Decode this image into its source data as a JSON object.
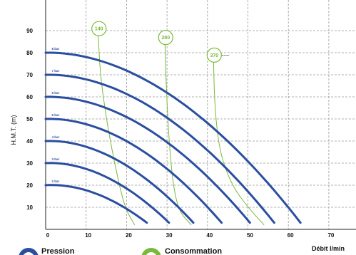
{
  "chart_data": {
    "type": "line",
    "xlabel": "Débit l/min",
    "ylabel": "H.M.T. (m)",
    "xlim": [
      0,
      80
    ],
    "ylim": [
      0,
      100
    ],
    "x_ticks": [
      "0",
      "10",
      "20",
      "30",
      "40",
      "50",
      "60",
      "70"
    ],
    "y_ticks": [
      "10",
      "20",
      "30",
      "40",
      "50",
      "60",
      "70",
      "80",
      "90"
    ],
    "grid": true,
    "pressure_series": [
      {
        "name": "2 bar",
        "h0": 20,
        "qmax": 25.0
      },
      {
        "name": "3 bar",
        "h0": 30,
        "qmax": 30.5
      },
      {
        "name": "4 bar",
        "h0": 40,
        "qmax": 36.5
      },
      {
        "name": "5 bar",
        "h0": 50,
        "qmax": 43.5
      },
      {
        "name": "6 bar",
        "h0": 60,
        "qmax": 50.5
      },
      {
        "name": "7 bar",
        "h0": 70,
        "qmax": 56.5
      },
      {
        "name": "8 bar",
        "h0": 80,
        "qmax": 63.0
      }
    ],
    "consumption_series": [
      {
        "name": "140",
        "points": [
          [
            13,
            88
          ],
          [
            13.5,
            70
          ],
          [
            15,
            50
          ],
          [
            17,
            30
          ],
          [
            19.5,
            10
          ],
          [
            22,
            2
          ]
        ]
      },
      {
        "name": "280",
        "points": [
          [
            29.5,
            84
          ],
          [
            29.8,
            65
          ],
          [
            30.5,
            40
          ],
          [
            31.5,
            20
          ],
          [
            33,
            8
          ],
          [
            36,
            2
          ]
        ]
      },
      {
        "name": "370",
        "points": [
          [
            41.5,
            76
          ],
          [
            41.8,
            55
          ],
          [
            43,
            35
          ],
          [
            46,
            20
          ],
          [
            50,
            10
          ],
          [
            54,
            2
          ]
        ]
      }
    ],
    "legend": {
      "pressure_label": "Pression",
      "consumption_label": "Consommation"
    },
    "colors": {
      "pressure": "#2b4ea0",
      "consumption": "#7bb93a",
      "grid": "#9a9a9a"
    }
  }
}
